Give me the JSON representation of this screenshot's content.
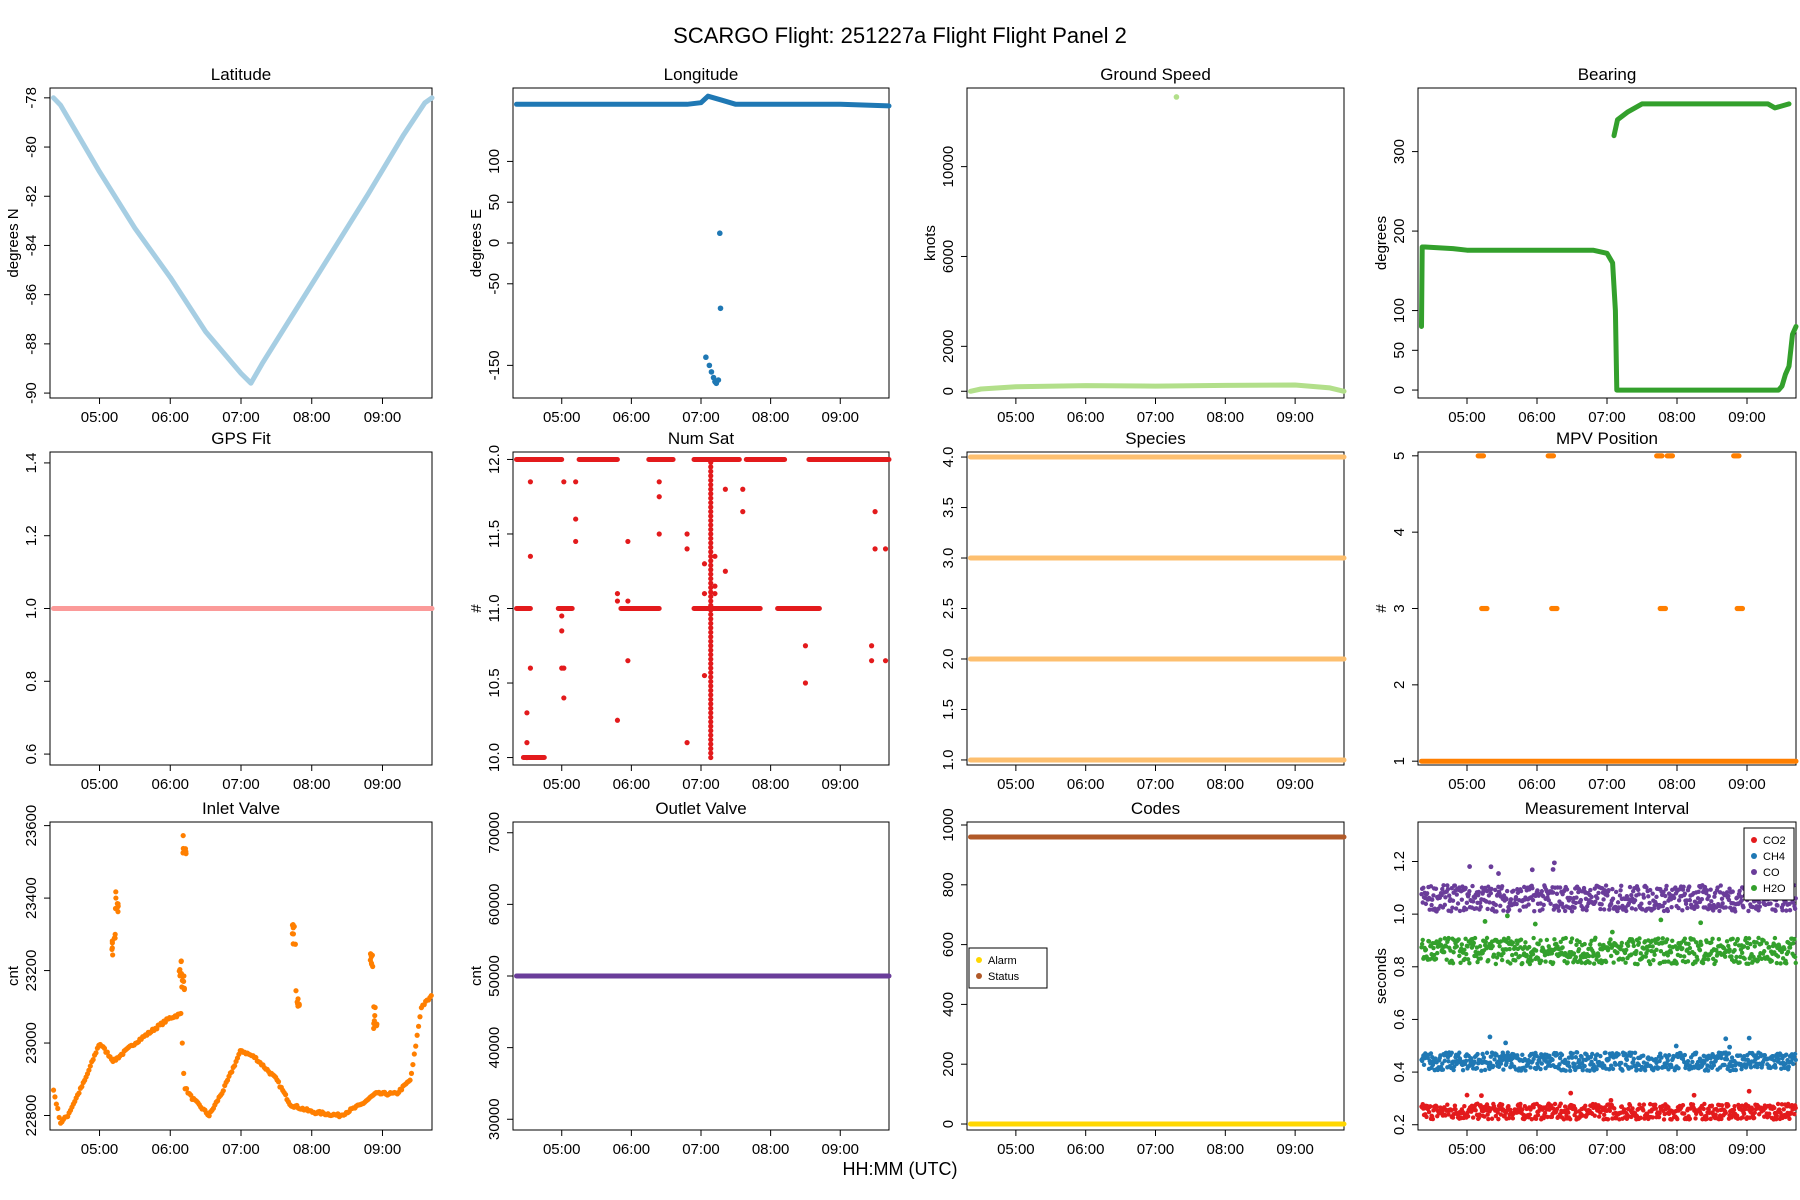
{
  "title": "SCARGO Flight: 251227a  Flight Flight  Panel 2",
  "xlabel": "HH:MM (UTC)",
  "time_ticks": [
    "05:00",
    "06:00",
    "07:00",
    "08:00",
    "09:00"
  ],
  "time_tick_hours": [
    5,
    6,
    7,
    8,
    9
  ],
  "time_range": [
    4.3,
    9.7
  ],
  "chart_data": [
    {
      "id": "latitude",
      "type": "scatter",
      "title": "Latitude",
      "ylabel": "degrees N",
      "color": "#a6cee3",
      "ylim": [
        -90.2,
        -77.6
      ],
      "yticks": [
        -90,
        -88,
        -86,
        -84,
        -82,
        -80,
        -78
      ],
      "ytick_labels": [
        "-90",
        "-88",
        "-86",
        "-84",
        "-82",
        "-80",
        "-78"
      ],
      "series": [
        {
          "name": "Latitude",
          "x": [
            4.35,
            4.45,
            5.0,
            5.5,
            6.0,
            6.5,
            7.0,
            7.14,
            7.3,
            7.8,
            8.3,
            8.8,
            9.3,
            9.6,
            9.7
          ],
          "values": [
            -78.0,
            -78.3,
            -81.0,
            -83.3,
            -85.3,
            -87.5,
            -89.2,
            -89.6,
            -88.8,
            -86.5,
            -84.2,
            -81.9,
            -79.5,
            -78.2,
            -78.0
          ]
        }
      ]
    },
    {
      "id": "longitude",
      "type": "scatter",
      "title": "Longitude",
      "ylabel": "degrees E",
      "color": "#1f78b4",
      "ylim": [
        -190,
        190
      ],
      "yticks": [
        -150,
        -50,
        0,
        50,
        100
      ],
      "ytick_labels": [
        "-150",
        "-50",
        "0",
        "50",
        "100"
      ],
      "series": [
        {
          "name": "Longitude",
          "x": [
            4.35,
            5.0,
            6.0,
            6.8,
            7.0,
            7.1,
            7.3,
            7.5,
            8.0,
            9.0,
            9.7
          ],
          "values": [
            170,
            170,
            170,
            170,
            172,
            180,
            175,
            170,
            170,
            170,
            168
          ]
        }
      ],
      "outliers": {
        "x": [
          7.07,
          7.12,
          7.15,
          7.18,
          7.2,
          7.22,
          7.25,
          7.28,
          7.27
        ],
        "values": [
          -140,
          -150,
          -158,
          -165,
          -170,
          -172,
          -168,
          -80,
          12
        ]
      }
    },
    {
      "id": "ground_speed",
      "type": "scatter",
      "title": "Ground Speed",
      "ylabel": "knots",
      "color": "#b2df8a",
      "ylim": [
        -300,
        13500
      ],
      "yticks": [
        0,
        2000,
        6000,
        10000
      ],
      "ytick_labels": [
        "0",
        "2000",
        "6000",
        "10000"
      ],
      "series": [
        {
          "name": "Ground Speed",
          "x": [
            4.35,
            4.5,
            5.0,
            6.0,
            7.0,
            8.0,
            9.0,
            9.5,
            9.7
          ],
          "values": [
            0,
            100,
            200,
            250,
            230,
            260,
            280,
            150,
            0
          ]
        }
      ],
      "outliers": {
        "x": [
          7.3
        ],
        "values": [
          13100
        ]
      }
    },
    {
      "id": "bearing",
      "type": "scatter",
      "title": "Bearing",
      "ylabel": "degrees",
      "color": "#33a02c",
      "ylim": [
        -10,
        380
      ],
      "yticks": [
        0,
        50,
        100,
        200,
        300
      ],
      "ytick_labels": [
        "0",
        "50",
        "100",
        "200",
        "300"
      ],
      "series": [
        {
          "name": "Bearing",
          "x": [
            4.35,
            4.36,
            4.4,
            4.8,
            5.0,
            6.0,
            6.8,
            7.0,
            7.08,
            7.12,
            7.14,
            7.2,
            7.5,
            8.0,
            8.5,
            9.0,
            9.3,
            9.45,
            9.5,
            9.55,
            9.6,
            9.65,
            9.7
          ],
          "values": [
            80,
            180,
            180,
            178,
            176,
            176,
            176,
            172,
            160,
            100,
            0,
            0,
            0,
            0,
            0,
            0,
            0,
            0,
            5,
            20,
            30,
            70,
            80
          ]
        }
      ],
      "series2": {
        "x": [
          7.1,
          7.15,
          7.3,
          7.5,
          8.0,
          8.5,
          9.0,
          9.3,
          9.4,
          9.6
        ],
        "values": [
          320,
          340,
          350,
          360,
          360,
          360,
          360,
          360,
          355,
          360
        ]
      }
    },
    {
      "id": "gps_fit",
      "type": "scatter",
      "title": "GPS Fit",
      "ylabel": "",
      "color": "#fb9a99",
      "ylim": [
        0.57,
        1.43
      ],
      "yticks": [
        0.6,
        0.8,
        1.0,
        1.2,
        1.4
      ],
      "ytick_labels": [
        "0.6",
        "0.8",
        "1.0",
        "1.2",
        "1.4"
      ],
      "series": [
        {
          "name": "GPS Fit",
          "x": [
            4.35,
            9.7
          ],
          "values": [
            1.0,
            1.0
          ]
        }
      ]
    },
    {
      "id": "num_sat",
      "type": "scatter",
      "title": "Num Sat",
      "ylabel": "#",
      "color": "#e31a1c",
      "ylim": [
        9.95,
        12.05
      ],
      "yticks": [
        10.0,
        10.5,
        11.0,
        11.5,
        12.0
      ],
      "ytick_labels": [
        "10.0",
        "10.5",
        "11.0",
        "11.5",
        "12.0"
      ],
      "series": [
        {
          "name": "Num Sat",
          "x": [
            4.35,
            9.7
          ],
          "values": [
            11,
            12
          ]
        }
      ]
    },
    {
      "id": "species",
      "type": "scatter",
      "title": "Species",
      "ylabel": "",
      "color": "#fdbf6f",
      "ylim": [
        0.95,
        4.05
      ],
      "yticks": [
        1.0,
        1.5,
        2.0,
        2.5,
        3.0,
        3.5,
        4.0
      ],
      "ytick_labels": [
        "1.0",
        "1.5",
        "2.0",
        "2.5",
        "3.0",
        "3.5",
        "4.0"
      ],
      "series": [
        {
          "name": "Species",
          "levels": [
            1,
            2,
            3,
            4
          ]
        }
      ]
    },
    {
      "id": "mpv_position",
      "type": "scatter",
      "title": "MPV Position",
      "ylabel": "#",
      "color": "#ff7f00",
      "ylim": [
        0.95,
        5.05
      ],
      "yticks": [
        1,
        2,
        3,
        4,
        5
      ],
      "ytick_labels": [
        "1",
        "2",
        "3",
        "4",
        "5"
      ],
      "series": [
        {
          "name": "MPV Position",
          "x": [
            5.2,
            5.25,
            6.2,
            6.25,
            7.75,
            7.8,
            7.9,
            8.85,
            8.9
          ],
          "values": [
            5,
            3,
            5,
            3,
            5,
            3,
            5,
            5,
            3
          ]
        }
      ]
    },
    {
      "id": "inlet_valve",
      "type": "scatter",
      "title": "Inlet Valve",
      "ylabel": "cnt",
      "color": "#ff7f00",
      "ylim": [
        22760,
        23610
      ],
      "yticks": [
        22800,
        23000,
        23200,
        23400,
        23600
      ],
      "ytick_labels": [
        "22800",
        "23000",
        "23200",
        "23400",
        "23600"
      ],
      "series": [
        {
          "name": "Inlet Valve",
          "x": [
            4.35,
            4.45,
            4.55,
            4.8,
            5.0,
            5.2,
            5.5,
            6.0,
            6.15,
            6.2,
            6.3,
            6.55,
            6.75,
            7.0,
            7.2,
            7.5,
            7.7,
            8.0,
            8.4,
            8.7,
            8.9,
            9.2,
            9.4,
            9.55,
            9.7
          ],
          "values": [
            22870,
            22780,
            22800,
            22900,
            23000,
            22950,
            23000,
            23070,
            23080,
            22880,
            22850,
            22800,
            22870,
            22980,
            22960,
            22900,
            22830,
            22810,
            22800,
            22830,
            22860,
            22860,
            22900,
            23100,
            23130
          ]
        }
      ],
      "outliers": {
        "x": [
          5.2,
          5.25,
          6.15,
          6.2,
          7.75,
          7.8,
          8.85,
          8.9,
          6.18
        ],
        "values": [
          23300,
          23420,
          23240,
          23580,
          23330,
          23150,
          23250,
          23100,
          23200
        ]
      }
    },
    {
      "id": "outlet_valve",
      "type": "scatter",
      "title": "Outlet Valve",
      "ylabel": "cnt",
      "color": "#6a3d9a",
      "ylim": [
        28500,
        71500
      ],
      "yticks": [
        30000,
        40000,
        50000,
        60000,
        70000
      ],
      "ytick_labels": [
        "30000",
        "40000",
        "50000",
        "60000",
        "70000"
      ],
      "series": [
        {
          "name": "Outlet Valve",
          "x": [
            4.35,
            9.7
          ],
          "values": [
            50000,
            50000
          ]
        }
      ]
    },
    {
      "id": "codes",
      "type": "scatter",
      "title": "Codes",
      "ylabel": "",
      "colors": [
        "#ffd700",
        "#b15928"
      ],
      "ylim": [
        -20,
        1010
      ],
      "yticks": [
        0,
        200,
        400,
        600,
        800,
        1000
      ],
      "ytick_labels": [
        "0",
        "200",
        "400",
        "600",
        "800",
        "1000"
      ],
      "series": [
        {
          "name": "Alarm",
          "x": [
            4.35,
            9.7
          ],
          "values": [
            0,
            0
          ]
        },
        {
          "name": "Status",
          "x": [
            4.35,
            9.7
          ],
          "values": [
            960,
            960
          ]
        }
      ],
      "legend": [
        "Alarm",
        "Status"
      ],
      "legend_position": "center-left"
    },
    {
      "id": "measurement_interval",
      "type": "scatter",
      "title": "Measurement Interval",
      "ylabel": "seconds",
      "colors": [
        "#e31a1c",
        "#1f78b4",
        "#6a3d9a",
        "#33a02c"
      ],
      "ylim": [
        0.18,
        1.35
      ],
      "yticks": [
        0.2,
        0.4,
        0.6,
        0.8,
        1.0,
        1.2
      ],
      "ytick_labels": [
        "0.2",
        "0.4",
        "0.6",
        "0.8",
        "1.0",
        "1.2"
      ],
      "series": [
        {
          "name": "CO2",
          "center": 0.25,
          "spread": 0.03
        },
        {
          "name": "CH4",
          "center": 0.44,
          "spread": 0.035
        },
        {
          "name": "CO",
          "center": 1.06,
          "spread": 0.05
        },
        {
          "name": "H2O",
          "center": 0.86,
          "spread": 0.05
        }
      ],
      "legend": [
        "CO2",
        "CH4",
        "CO",
        "H2O"
      ],
      "legend_position": "top-right"
    }
  ]
}
